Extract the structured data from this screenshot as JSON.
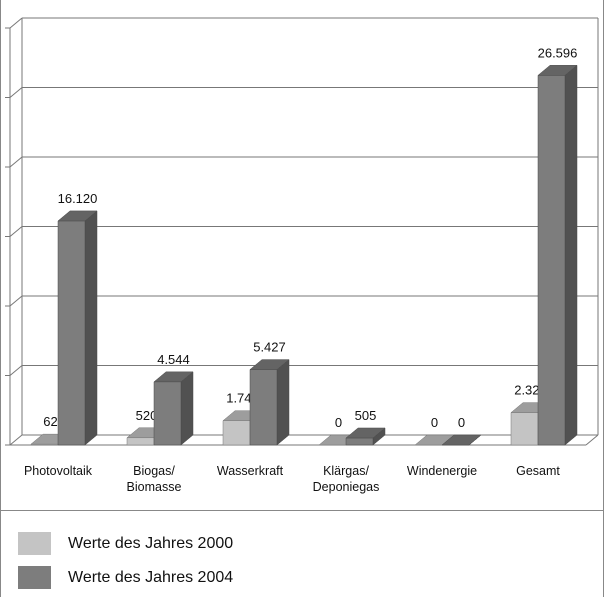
{
  "chart_data": {
    "type": "bar3d",
    "categories": [
      "Photovoltaik",
      "Biogas/\nBiomasse",
      "Wasserkraft",
      "Klärgas/\nDeponiegas",
      "Windenergie",
      "Gesamt"
    ],
    "series": [
      {
        "name": "Werte des Jahres 2000",
        "color": "#c4c4c4",
        "values": [
          62,
          520,
          1747,
          0,
          0,
          2329
        ],
        "value_labels": [
          "62",
          "520",
          "1.747",
          "0",
          "0",
          "2.329"
        ]
      },
      {
        "name": "Werte des Jahres 2004",
        "color": "#7d7d7d",
        "values": [
          16120,
          4544,
          5427,
          505,
          0,
          26596
        ],
        "value_labels": [
          "16.120",
          "4.544",
          "5.427",
          "505",
          "0",
          "26.596"
        ]
      }
    ],
    "ylim": [
      0,
      30000
    ],
    "yticks": [
      0,
      5000,
      10000,
      15000,
      20000,
      25000,
      30000
    ],
    "grid": true,
    "legend": "bottom"
  }
}
